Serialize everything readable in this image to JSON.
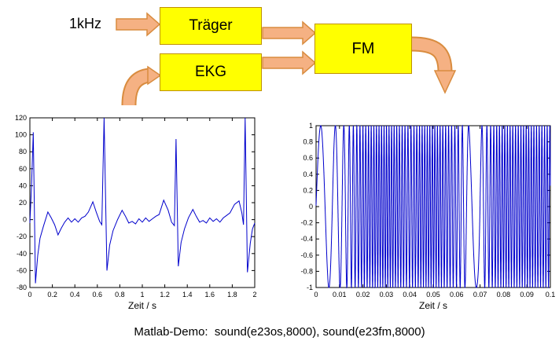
{
  "diagram": {
    "input_label": "1kHz",
    "blocks": [
      {
        "id": "traeger",
        "label": "Träger"
      },
      {
        "id": "ekg",
        "label": "EKG"
      },
      {
        "id": "fm",
        "label": "FM"
      }
    ],
    "colors": {
      "box_fill": "#ffff00",
      "box_border": "#bf9000",
      "arrow_fill": "#f5b183",
      "arrow_border": "#d98c3f"
    }
  },
  "caption": "Matlab-Demo:  sound(e23os,8000), sound(e23fm,8000)",
  "chart_data": [
    {
      "id": "ekg-plot",
      "type": "line",
      "title": "",
      "xlabel": "Zeit / s",
      "ylabel": "",
      "xlim": [
        0,
        2
      ],
      "ylim": [
        -80,
        120
      ],
      "xticks": [
        0,
        0.2,
        0.4,
        0.6,
        0.8,
        1,
        1.2,
        1.4,
        1.6,
        1.8,
        2
      ],
      "yticks": [
        -80,
        -60,
        -40,
        -20,
        0,
        20,
        40,
        60,
        80,
        100,
        120
      ],
      "grid": false,
      "legend": null,
      "line_color": "#0000cc",
      "points": [
        [
          0,
          -4
        ],
        [
          0.015,
          40
        ],
        [
          0.03,
          103
        ],
        [
          0.05,
          -75
        ],
        [
          0.07,
          -42
        ],
        [
          0.09,
          -22
        ],
        [
          0.12,
          -8
        ],
        [
          0.16,
          9
        ],
        [
          0.19,
          2
        ],
        [
          0.22,
          -6
        ],
        [
          0.25,
          -18
        ],
        [
          0.28,
          -10
        ],
        [
          0.31,
          -3
        ],
        [
          0.34,
          2
        ],
        [
          0.37,
          -3
        ],
        [
          0.4,
          1
        ],
        [
          0.43,
          -3
        ],
        [
          0.46,
          2
        ],
        [
          0.49,
          4
        ],
        [
          0.52,
          9
        ],
        [
          0.56,
          21
        ],
        [
          0.59,
          9
        ],
        [
          0.62,
          -2
        ],
        [
          0.64,
          -6
        ],
        [
          0.66,
          120
        ],
        [
          0.685,
          -60
        ],
        [
          0.71,
          -30
        ],
        [
          0.74,
          -13
        ],
        [
          0.78,
          0
        ],
        [
          0.82,
          11
        ],
        [
          0.85,
          4
        ],
        [
          0.88,
          -4
        ],
        [
          0.91,
          -2
        ],
        [
          0.94,
          -5
        ],
        [
          0.97,
          1
        ],
        [
          1.0,
          -3
        ],
        [
          1.03,
          2
        ],
        [
          1.06,
          -2
        ],
        [
          1.09,
          1
        ],
        [
          1.12,
          4
        ],
        [
          1.15,
          6
        ],
        [
          1.19,
          23
        ],
        [
          1.23,
          11
        ],
        [
          1.26,
          -3
        ],
        [
          1.285,
          -7
        ],
        [
          1.3,
          95
        ],
        [
          1.32,
          -55
        ],
        [
          1.345,
          -27
        ],
        [
          1.375,
          -11
        ],
        [
          1.41,
          2
        ],
        [
          1.45,
          12
        ],
        [
          1.48,
          4
        ],
        [
          1.51,
          -3
        ],
        [
          1.54,
          -1
        ],
        [
          1.57,
          -4
        ],
        [
          1.6,
          2
        ],
        [
          1.63,
          -2
        ],
        [
          1.66,
          1
        ],
        [
          1.69,
          -3
        ],
        [
          1.72,
          2
        ],
        [
          1.75,
          5
        ],
        [
          1.78,
          8
        ],
        [
          1.82,
          18
        ],
        [
          1.86,
          22
        ],
        [
          1.885,
          8
        ],
        [
          1.9,
          -6
        ],
        [
          1.915,
          120
        ],
        [
          1.935,
          -62
        ],
        [
          1.96,
          -28
        ],
        [
          1.98,
          -11
        ],
        [
          2.0,
          -4
        ]
      ]
    },
    {
      "id": "fm-plot",
      "type": "line",
      "title": "",
      "xlabel": "Zeit / s",
      "ylabel": "",
      "xlim": [
        0,
        0.1
      ],
      "ylim": [
        -1,
        1
      ],
      "xticks": [
        0,
        0.01,
        0.02,
        0.03,
        0.04,
        0.05,
        0.06,
        0.07,
        0.08,
        0.09,
        0.1
      ],
      "yticks": [
        -1,
        -0.8,
        -0.6,
        -0.4,
        -0.2,
        0,
        0.2,
        0.4,
        0.6,
        0.8,
        1
      ],
      "grid": false,
      "legend": null,
      "line_color": "#0000cc",
      "fm_synthesis": {
        "amplitude": 1,
        "freq_profile_hz": [
          [
            0,
            120
          ],
          [
            0.004,
            140
          ],
          [
            0.008,
            200
          ],
          [
            0.012,
            350
          ],
          [
            0.016,
            650
          ],
          [
            0.02,
            820
          ],
          [
            0.025,
            900
          ],
          [
            0.03,
            950
          ],
          [
            0.035,
            880
          ],
          [
            0.04,
            760
          ],
          [
            0.045,
            900
          ],
          [
            0.05,
            940
          ],
          [
            0.055,
            820
          ],
          [
            0.06,
            700
          ],
          [
            0.063,
            450
          ],
          [
            0.066,
            150
          ],
          [
            0.069,
            120
          ],
          [
            0.072,
            500
          ],
          [
            0.076,
            800
          ],
          [
            0.08,
            900
          ],
          [
            0.085,
            850
          ],
          [
            0.09,
            920
          ],
          [
            0.095,
            870
          ],
          [
            0.1,
            900
          ]
        ]
      }
    }
  ]
}
